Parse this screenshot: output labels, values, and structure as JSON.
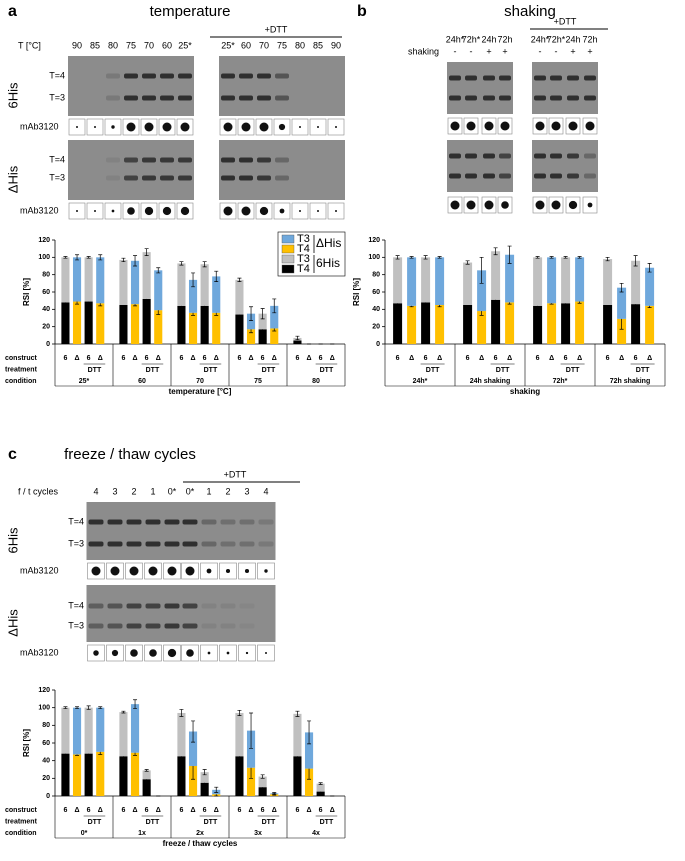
{
  "panels": [
    {
      "letter": "a",
      "title": "temperature",
      "lane_header": "T [°C]",
      "lanes": [
        "90",
        "85",
        "80",
        "75",
        "70",
        "60",
        "25*"
      ],
      "dtt_label": "+DTT",
      "dtt_lanes": [
        "25*",
        "60",
        "70",
        "75",
        "80",
        "85",
        "90"
      ],
      "rows": [
        {
          "label": "6His",
          "bands": [
            "T=4",
            "T=3"
          ],
          "blot": "mAb3120"
        },
        {
          "label": "ΔHis",
          "bands": [
            "T=4",
            "T=3"
          ],
          "blot": "mAb3120"
        }
      ]
    },
    {
      "letter": "b",
      "title": "shaking",
      "lane_header": "shaking",
      "lanes": [
        "24h*",
        "72h*",
        "24h",
        "72h"
      ],
      "lane_marks": [
        "-",
        "-",
        "+",
        "+"
      ],
      "dtt_label": "+DTT",
      "dtt_lanes": [
        "24h*",
        "72h*",
        "24h",
        "72h"
      ],
      "dtt_lane_marks": [
        "-",
        "-",
        "+",
        "+"
      ]
    },
    {
      "letter": "c",
      "title": "freeze / thaw cycles",
      "lane_header": "f / t cycles",
      "lanes": [
        "4",
        "3",
        "2",
        "1",
        "0*"
      ],
      "dtt_label": "+DTT",
      "dtt_lanes": [
        "0*",
        "1",
        "2",
        "3",
        "4"
      ],
      "rows": [
        {
          "label": "6His",
          "bands": [
            "T=4",
            "T=3"
          ],
          "blot": "mAb3120"
        },
        {
          "label": "ΔHis",
          "bands": [
            "T=4",
            "T=3"
          ],
          "blot": "mAb3120"
        }
      ]
    }
  ],
  "chart_data": [
    {
      "type": "bar",
      "stacked": true,
      "ylabel": "RSI [%]",
      "xlabel": "temperature [°C]",
      "ylim": [
        0,
        120
      ],
      "yticks": [
        0,
        20,
        40,
        60,
        80,
        100,
        120
      ],
      "row_labels": [
        "construct",
        "treatment",
        "condition"
      ],
      "constructs": [
        "6",
        "Δ",
        "6",
        "Δ"
      ],
      "treatment": "DTT",
      "groups": [
        "25*",
        "60",
        "70",
        "75",
        "80"
      ],
      "legend": true,
      "series": [
        {
          "name": "T4",
          "construct": "6His",
          "color": "#000000",
          "values": [
            48,
            null,
            49,
            null,
            45,
            null,
            52,
            null,
            44,
            null,
            44,
            null,
            34,
            null,
            17,
            null,
            4,
            null,
            0,
            null
          ],
          "errors": [
            2,
            null,
            2,
            null,
            1,
            null,
            3,
            null,
            2,
            null,
            3,
            null,
            2,
            null,
            3,
            null,
            1,
            null,
            0,
            null
          ]
        },
        {
          "name": "T3",
          "construct": "6His",
          "color": "#c0c0c0",
          "values": [
            52,
            null,
            51,
            null,
            52,
            null,
            54,
            null,
            49,
            null,
            48,
            null,
            40,
            null,
            18,
            null,
            3,
            null,
            0,
            null
          ],
          "errors": [
            1,
            null,
            1,
            null,
            2,
            null,
            4,
            null,
            2,
            null,
            3,
            null,
            2,
            null,
            6,
            null,
            2,
            null,
            0,
            null
          ]
        },
        {
          "name": "T4",
          "construct": "ΔHis",
          "color": "#ffc000",
          "values": [
            null,
            49,
            null,
            47,
            null,
            46,
            null,
            39,
            null,
            36,
            null,
            36,
            null,
            17,
            null,
            18,
            null,
            0,
            null,
            0
          ],
          "errors": [
            null,
            3,
            null,
            3,
            null,
            2,
            null,
            5,
            null,
            3,
            null,
            3,
            null,
            4,
            null,
            3,
            null,
            0,
            null,
            0
          ]
        },
        {
          "name": "T3",
          "construct": "ΔHis",
          "color": "#6fa8dc",
          "values": [
            null,
            51,
            null,
            53,
            null,
            50,
            null,
            46,
            null,
            38,
            null,
            42,
            null,
            18,
            null,
            26,
            null,
            0,
            null,
            0
          ],
          "errors": [
            null,
            3,
            null,
            3,
            null,
            6,
            null,
            3,
            null,
            8,
            null,
            6,
            null,
            8,
            null,
            8,
            null,
            0,
            null,
            0
          ]
        }
      ]
    },
    {
      "type": "bar",
      "stacked": true,
      "ylabel": "RSI [%]",
      "xlabel": "shaking",
      "ylim": [
        0,
        120
      ],
      "yticks": [
        0,
        20,
        40,
        60,
        80,
        100,
        120
      ],
      "constructs": [
        "6",
        "Δ",
        "6",
        "Δ"
      ],
      "treatment": "DTT",
      "groups": [
        "24h*",
        "24h shaking",
        "72h*",
        "72h shaking"
      ],
      "legend": false,
      "series": [
        {
          "color": "#000000",
          "values": [
            47,
            null,
            48,
            null,
            45,
            null,
            51,
            null,
            44,
            null,
            47,
            null,
            45,
            null,
            46,
            null
          ],
          "errors": [
            2,
            null,
            1,
            null,
            3,
            null,
            3,
            null,
            1,
            null,
            1,
            null,
            1,
            null,
            3,
            null
          ]
        },
        {
          "color": "#c0c0c0",
          "values": [
            53,
            null,
            52,
            null,
            49,
            null,
            56,
            null,
            56,
            null,
            53,
            null,
            53,
            null,
            50,
            null
          ],
          "errors": [
            2,
            null,
            2,
            null,
            2,
            null,
            4,
            null,
            1,
            null,
            1,
            null,
            2,
            null,
            6,
            null
          ]
        },
        {
          "color": "#ffc000",
          "values": [
            null,
            44,
            null,
            45,
            null,
            38,
            null,
            48,
            null,
            47,
            null,
            49,
            null,
            29,
            null,
            44
          ],
          "errors": [
            null,
            1,
            null,
            2,
            null,
            5,
            null,
            2,
            null,
            1,
            null,
            2,
            null,
            12,
            null,
            2
          ]
        },
        {
          "color": "#6fa8dc",
          "values": [
            null,
            56,
            null,
            55,
            null,
            47,
            null,
            55,
            null,
            53,
            null,
            51,
            null,
            36,
            null,
            44
          ],
          "errors": [
            null,
            1,
            null,
            1,
            null,
            15,
            null,
            10,
            null,
            1,
            null,
            1,
            null,
            5,
            null,
            5
          ]
        }
      ]
    },
    {
      "type": "bar",
      "stacked": true,
      "ylabel": "RSI [%]",
      "xlabel": "freeze / thaw cycles",
      "ylim": [
        0,
        120
      ],
      "yticks": [
        0,
        20,
        40,
        60,
        80,
        100,
        120
      ],
      "row_labels": [
        "construct",
        "treatment",
        "condition"
      ],
      "constructs": [
        "6",
        "Δ",
        "6",
        "Δ"
      ],
      "treatment": "DTT",
      "groups": [
        "0*",
        "1x",
        "2x",
        "3x",
        "4x"
      ],
      "legend": false,
      "series": [
        {
          "color": "#000000",
          "values": [
            48,
            null,
            48,
            null,
            45,
            null,
            19,
            null,
            45,
            null,
            15,
            null,
            45,
            null,
            10,
            null,
            45,
            null,
            5,
            null
          ],
          "errors": [
            1,
            null,
            1,
            null,
            2,
            null,
            2,
            null,
            2,
            null,
            2,
            null,
            2,
            null,
            1,
            null,
            2,
            null,
            2,
            null
          ]
        },
        {
          "color": "#c0c0c0",
          "values": [
            52,
            null,
            52,
            null,
            50,
            null,
            10,
            null,
            49,
            null,
            12,
            null,
            49,
            null,
            12,
            null,
            48,
            null,
            9,
            null
          ],
          "errors": [
            1,
            null,
            2,
            null,
            1,
            null,
            1,
            null,
            4,
            null,
            3,
            null,
            3,
            null,
            2,
            null,
            3,
            null,
            1,
            null
          ]
        },
        {
          "color": "#ffc000",
          "values": [
            null,
            47,
            null,
            50,
            null,
            49,
            null,
            0,
            null,
            34,
            null,
            2,
            null,
            32,
            null,
            2,
            null,
            31,
            null,
            0
          ],
          "errors": [
            null,
            1,
            null,
            3,
            null,
            3,
            null,
            0,
            null,
            15,
            null,
            2,
            null,
            12,
            null,
            1,
            null,
            12,
            null,
            0
          ]
        },
        {
          "color": "#6fa8dc",
          "values": [
            null,
            53,
            null,
            50,
            null,
            55,
            null,
            0,
            null,
            39,
            null,
            5,
            null,
            42,
            null,
            1,
            null,
            41,
            null,
            0
          ],
          "errors": [
            null,
            1,
            null,
            1,
            null,
            5,
            null,
            0,
            null,
            12,
            null,
            3,
            null,
            20,
            null,
            1,
            null,
            13,
            null,
            0
          ]
        }
      ]
    }
  ]
}
